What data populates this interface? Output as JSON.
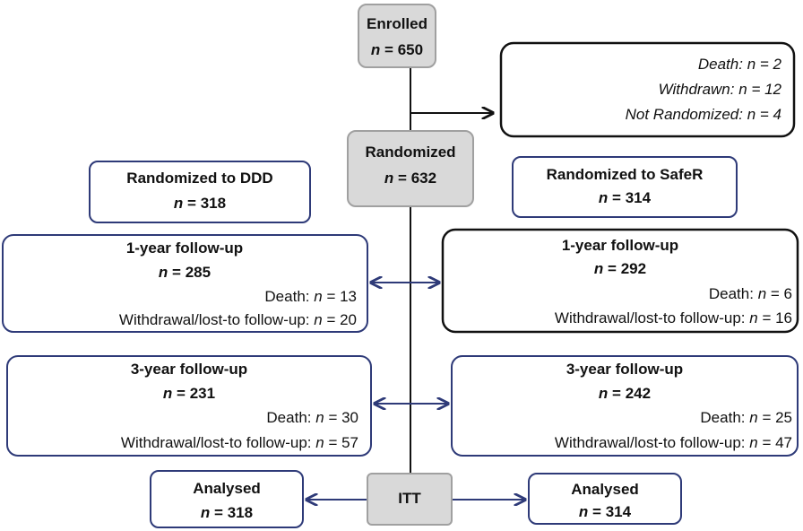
{
  "enrolled": {
    "title": "Enrolled",
    "var": "n",
    "count": "= 650"
  },
  "excluded": {
    "lines": [
      {
        "label": "Death:",
        "var": "n",
        "count": "= 2"
      },
      {
        "label": "Withdrawn:",
        "var": "n",
        "count": "= 12"
      },
      {
        "label": "Not Randomized:",
        "var": "n",
        "count": "= 4"
      }
    ]
  },
  "randomized": {
    "title": "Randomized",
    "var": "n",
    "count": "= 632"
  },
  "arms": [
    {
      "randomized": {
        "title": "Randomized to DDD",
        "var": "n",
        "count": "= 318"
      },
      "followup_1y": {
        "title": "1-year follow-up",
        "var": "n",
        "count": "= 285",
        "death": {
          "label": "Death:",
          "var": "n",
          "count": "= 13"
        },
        "withdrawal": {
          "label": "Withdrawal/lost-to follow-up:",
          "var": "n",
          "count": "= 20"
        }
      },
      "followup_3y": {
        "title": "3-year follow-up",
        "var": "n",
        "count": "= 231",
        "death": {
          "label": "Death:",
          "var": "n",
          "count": "= 30"
        },
        "withdrawal": {
          "label": "Withdrawal/lost-to follow-up:",
          "var": "n",
          "count": "= 57"
        }
      },
      "analysed": {
        "title": "Analysed",
        "var": "n",
        "count": "= 318"
      }
    },
    {
      "randomized": {
        "title": "Randomized to SafeR",
        "var": "n",
        "count": "= 314"
      },
      "followup_1y": {
        "title": "1-year follow-up",
        "var": "n",
        "count": "= 292",
        "death": {
          "label": "Death:",
          "var": "n",
          "count": "= 6"
        },
        "withdrawal": {
          "label": "Withdrawal/lost-to follow-up:",
          "var": "n",
          "count": "= 16"
        }
      },
      "followup_3y": {
        "title": "3-year follow-up",
        "var": "n",
        "count": "= 242",
        "death": {
          "label": "Death:",
          "var": "n",
          "count": "= 25"
        },
        "withdrawal": {
          "label": "Withdrawal/lost-to follow-up:",
          "var": "n",
          "count": "= 47"
        }
      },
      "analysed": {
        "title": "Analysed",
        "var": "n",
        "count": "= 314"
      }
    }
  ],
  "itt": {
    "label": "ITT"
  }
}
